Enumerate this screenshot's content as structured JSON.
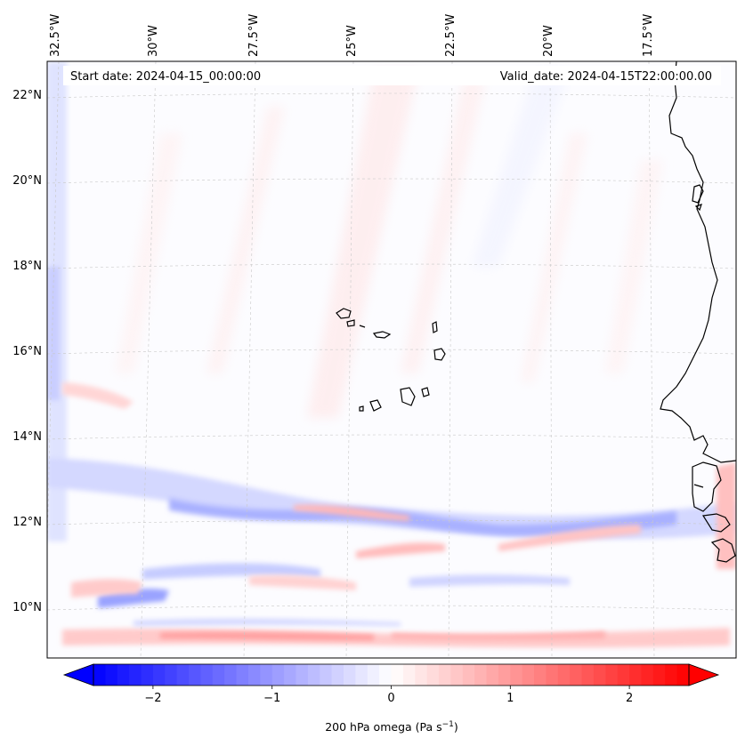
{
  "map": {
    "start_date_label": "Start date: 2024-04-15_00:00:00",
    "valid_date_label": "Valid_date: 2024-04-15T22:00:00.00",
    "longitude_labels": [
      "32.5°W",
      "30°W",
      "27.5°W",
      "25°W",
      "22.5°W",
      "20°W",
      "17.5°W"
    ],
    "latitude_labels": [
      "22°N",
      "20°N",
      "18°N",
      "16°N",
      "14°N",
      "12°N",
      "10°N"
    ],
    "field": "200 hPa omega"
  },
  "colorbar": {
    "label_prefix": "200 hPa omega (Pa s",
    "label_exponent": "−1",
    "label_suffix": ")",
    "ticks": [
      "−2",
      "−1",
      "0",
      "1",
      "2"
    ],
    "tick_values": [
      -2,
      -1,
      0,
      1,
      2
    ],
    "range": [
      -2.5,
      2.5
    ],
    "colormap": "bwr",
    "min_color": "#0000ff",
    "mid_color": "#ffffff",
    "max_color": "#ff0000"
  },
  "colors": {
    "coastline": "#000000",
    "gridline": "#c8c8c8"
  }
}
